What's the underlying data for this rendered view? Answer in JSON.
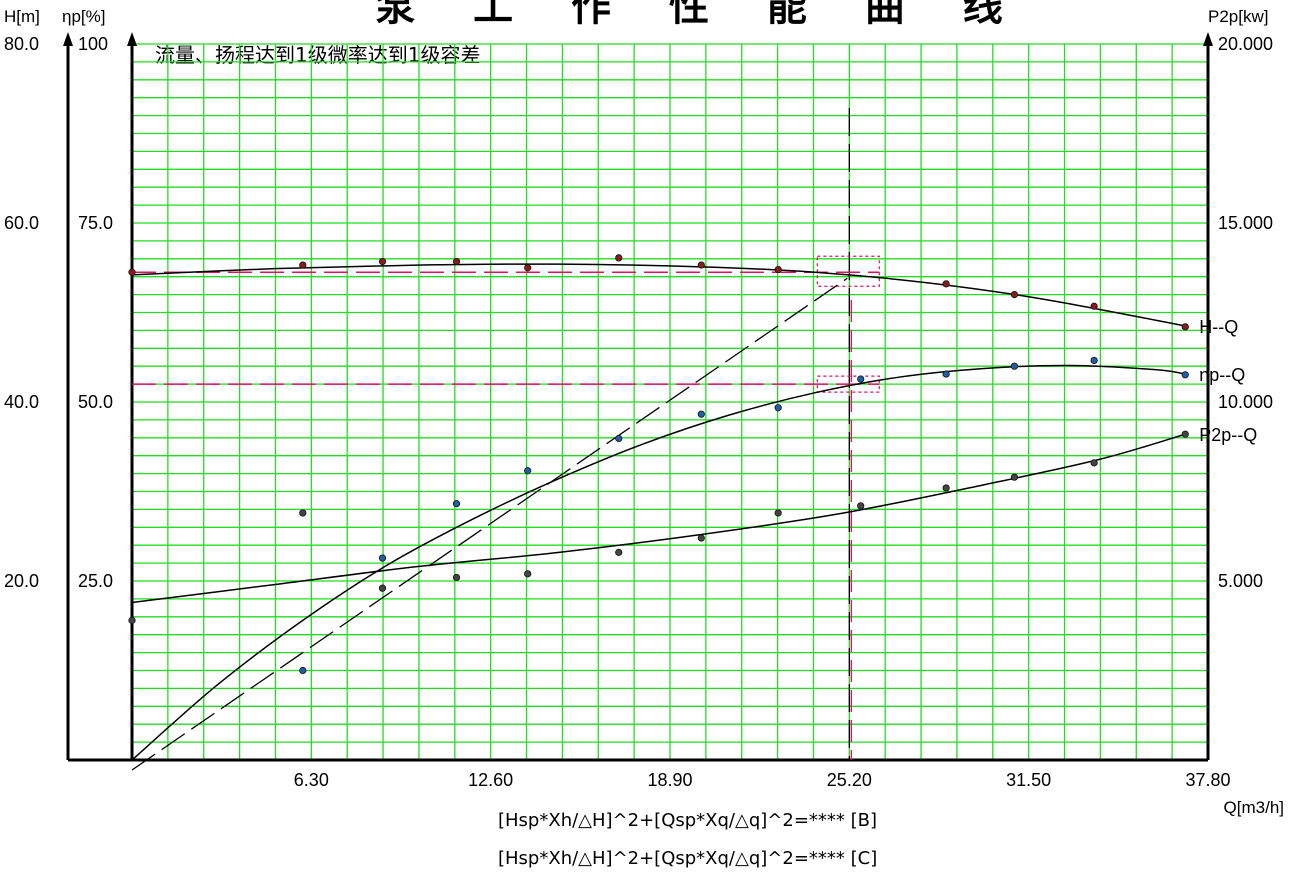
{
  "chart_data": {
    "type": "line",
    "title": "泵 工 作 性 能 曲 线",
    "note": "流量、扬程达到1级微率达到1级容差",
    "xlabel": "Q[m3/h]",
    "ylabel_head": "H[m]",
    "ylabel_eff": "ηp[%]",
    "ylabel_power": "P2p[kw]",
    "xlim": [
      0,
      37.8
    ],
    "ylim_head": [
      0,
      80
    ],
    "ylim_eff": [
      0,
      100
    ],
    "ylim_power": [
      0,
      20
    ],
    "x_ticks": [
      "6.30",
      "12.60",
      "18.90",
      "25.20",
      "31.50",
      "37.80"
    ],
    "head_ticks": [
      "20.0",
      "40.0",
      "60.0",
      "80.0"
    ],
    "eff_ticks": [
      "25.0",
      "50.0",
      "75.0",
      "100"
    ],
    "power_ticks": [
      "5.000",
      "10.000",
      "15.000",
      "20.000"
    ],
    "grid": true,
    "formula_lines": [
      "[Hsp*Xh/△H]^2+[Qsp*Xq/△q]^2=**** [B]",
      "[Hsp*Xh/△H]^2+[Qsp*Xq/△q]^2=**** [C]"
    ],
    "duty_point": {
      "Q": 25.2,
      "H": 54.5,
      "eff": 52.5
    },
    "series": [
      {
        "name": "H--Q",
        "axis": "head",
        "color": "#8b1a1a",
        "points": [
          [
            0,
            54.5
          ],
          [
            6,
            55.3
          ],
          [
            8.8,
            55.7
          ],
          [
            11.4,
            55.7
          ],
          [
            13.9,
            55.0
          ],
          [
            17.1,
            56.1
          ],
          [
            20.0,
            55.3
          ],
          [
            22.7,
            54.8
          ],
          [
            28.6,
            53.2
          ],
          [
            31.0,
            52.0
          ],
          [
            33.8,
            50.7
          ],
          [
            37.0,
            48.4
          ]
        ],
        "curve": [
          [
            0,
            54.2
          ],
          [
            5,
            54.9
          ],
          [
            10,
            55.3
          ],
          [
            15,
            55.4
          ],
          [
            20,
            55.1
          ],
          [
            24,
            54.5
          ],
          [
            28,
            53.3
          ],
          [
            32,
            51.5
          ],
          [
            37,
            48.5
          ]
        ]
      },
      {
        "name": "ηp--Q",
        "axis": "eff",
        "color": "#1f5fa8",
        "points": [
          [
            6,
            12.5
          ],
          [
            8.8,
            28.2
          ],
          [
            11.4,
            35.8
          ],
          [
            13.9,
            40.4
          ],
          [
            17.1,
            44.9
          ],
          [
            20.0,
            48.3
          ],
          [
            22.7,
            49.2
          ],
          [
            25.6,
            53.2
          ],
          [
            28.6,
            53.9
          ],
          [
            31.0,
            55.0
          ],
          [
            33.8,
            55.8
          ],
          [
            37.0,
            53.8
          ]
        ],
        "curve": [
          [
            0,
            0
          ],
          [
            3,
            10.5
          ],
          [
            6,
            19.5
          ],
          [
            9,
            27.3
          ],
          [
            12,
            33.7
          ],
          [
            15,
            39.3
          ],
          [
            18,
            44.2
          ],
          [
            21,
            48.2
          ],
          [
            24,
            51.3
          ],
          [
            27,
            53.5
          ],
          [
            30,
            54.7
          ],
          [
            33,
            55.1
          ],
          [
            36,
            54.5
          ],
          [
            37,
            53.9
          ]
        ]
      },
      {
        "name": "P2p--Q",
        "axis": "power",
        "color": "#444444",
        "points": [
          [
            0,
            3.9
          ],
          [
            6,
            6.9
          ],
          [
            8.8,
            4.8
          ],
          [
            11.4,
            5.1
          ],
          [
            13.9,
            5.2
          ],
          [
            17.1,
            5.8
          ],
          [
            20.0,
            6.2
          ],
          [
            22.7,
            6.9
          ],
          [
            25.6,
            7.1
          ],
          [
            28.6,
            7.6
          ],
          [
            31.0,
            7.9
          ],
          [
            33.8,
            8.3
          ],
          [
            37.0,
            9.1
          ]
        ],
        "curve": [
          [
            0,
            4.4
          ],
          [
            5,
            4.9
          ],
          [
            10,
            5.4
          ],
          [
            15,
            5.8
          ],
          [
            20,
            6.3
          ],
          [
            25,
            6.9
          ],
          [
            30,
            7.7
          ],
          [
            34,
            8.4
          ],
          [
            37,
            9.1
          ]
        ]
      }
    ]
  }
}
